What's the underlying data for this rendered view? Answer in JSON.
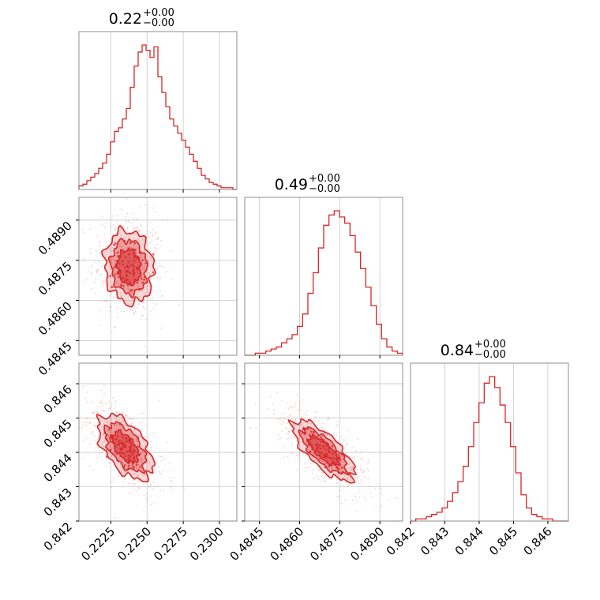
{
  "colors": {
    "line": "#d62728",
    "fill": "#d62728",
    "grid": "#c8c8c8",
    "frame": "#808080"
  },
  "chart_data": {
    "type": "corner",
    "params": [
      {
        "title": "0.22",
        "err_plus": "+0.00",
        "err_minus": "−0.00",
        "range": [
          0.2203,
          0.2312
        ],
        "ticks": [
          0.2225,
          0.225,
          0.2275,
          0.23
        ],
        "tick_labels": [
          "0.2225",
          "0.2250",
          "0.2275",
          "0.2300"
        ]
      },
      {
        "title": "0.49",
        "err_plus": "+0.00",
        "err_minus": "−0.00",
        "range": [
          0.48395,
          0.48985
        ],
        "ticks": [
          0.4845,
          0.486,
          0.4875,
          0.489
        ],
        "tick_labels": [
          "0.4845",
          "0.4860",
          "0.4875",
          "0.4890"
        ]
      },
      {
        "title": "0.84",
        "err_plus": "+0.00",
        "err_minus": "−0.00",
        "range": [
          0.842,
          0.8466
        ],
        "ticks": [
          0.842,
          0.843,
          0.844,
          0.845,
          0.846
        ],
        "tick_labels": [
          "0.842",
          "0.843",
          "0.844",
          "0.845",
          "0.846"
        ]
      }
    ],
    "histograms": [
      {
        "param": 0,
        "values": [
          2,
          3,
          5,
          7,
          9,
          12,
          15,
          20,
          27,
          33,
          35,
          40,
          46,
          58,
          70,
          78,
          82,
          79,
          75,
          81,
          64,
          55,
          47,
          40,
          36,
          32,
          28,
          24,
          20,
          16,
          12,
          8,
          6,
          4,
          3,
          2,
          1,
          1,
          1,
          0
        ]
      },
      {
        "param": 1,
        "values": [
          0,
          0,
          1,
          1,
          2,
          3,
          4,
          6,
          8,
          10,
          14,
          20,
          30,
          40,
          52,
          63,
          68,
          70,
          67,
          64,
          58,
          50,
          42,
          33,
          24,
          15,
          8,
          4,
          2,
          1
        ]
      },
      {
        "param": 2,
        "values": [
          0,
          1,
          1,
          2,
          3,
          4,
          6,
          9,
          13,
          18,
          25,
          34,
          45,
          54,
          63,
          66,
          61,
          53,
          45,
          34,
          22,
          12,
          6,
          3,
          2,
          1,
          1,
          0,
          0,
          0
        ]
      }
    ],
    "pairs": [
      {
        "x_param": 0,
        "y_param": 1,
        "center": [
          0.22375,
          0.48725
        ],
        "spread": [
          0.0008,
          0.00065
        ],
        "rho": -0.1
      },
      {
        "x_param": 0,
        "y_param": 2,
        "center": [
          0.2235,
          0.84415
        ],
        "spread": [
          0.0009,
          0.00045
        ],
        "rho": -0.55
      },
      {
        "x_param": 1,
        "y_param": 2,
        "center": [
          0.4869,
          0.84405
        ],
        "spread": [
          0.00055,
          0.00042
        ],
        "rho": -0.75
      }
    ]
  }
}
